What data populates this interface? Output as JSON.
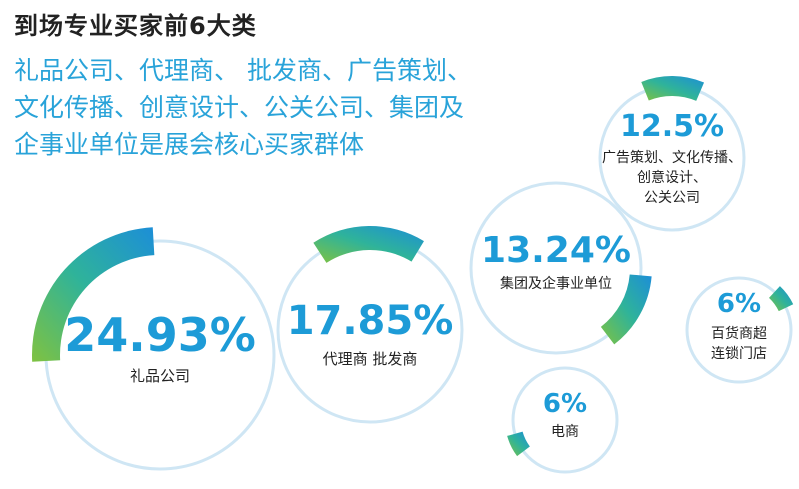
{
  "header": {
    "title": "到场专业买家前6大类",
    "subtitle_lines": [
      "礼品公司、代理商、 批发商、广告策划、",
      "文化传播、创意设计、公关公司、集团及",
      "企事业单位是展会核心买家群体"
    ]
  },
  "colors": {
    "title": "#222222",
    "subtitle": "#29a3d9",
    "value_text": "#1d9bd7",
    "label_text": "#222222",
    "ring_outline": "#cfe6f4",
    "arc_gradient_start": "#7fc241",
    "arc_gradient_mid": "#2fb39a",
    "arc_gradient_end": "#1c8ed8"
  },
  "chart_data": {
    "type": "pie",
    "title": "到场专业买家前6大类",
    "unit": "%",
    "categories": [
      {
        "value": 24.93,
        "label_lines": [
          "礼品公司"
        ],
        "display_value": "24.93%"
      },
      {
        "value": 17.85,
        "label_lines": [
          "代理商 批发商"
        ],
        "display_value": "17.85%"
      },
      {
        "value": 13.24,
        "label_lines": [
          "集团及企事业单位"
        ],
        "display_value": "13.24%"
      },
      {
        "value": 12.5,
        "label_lines": [
          "广告策划、文化传播、",
          "创意设计、",
          "公关公司"
        ],
        "display_value": "12.5%"
      },
      {
        "value": 6,
        "label_lines": [
          "百货商超",
          "连锁门店"
        ],
        "display_value": "6%"
      },
      {
        "value": 6,
        "label_lines": [
          "电商"
        ],
        "display_value": "6%"
      }
    ]
  }
}
